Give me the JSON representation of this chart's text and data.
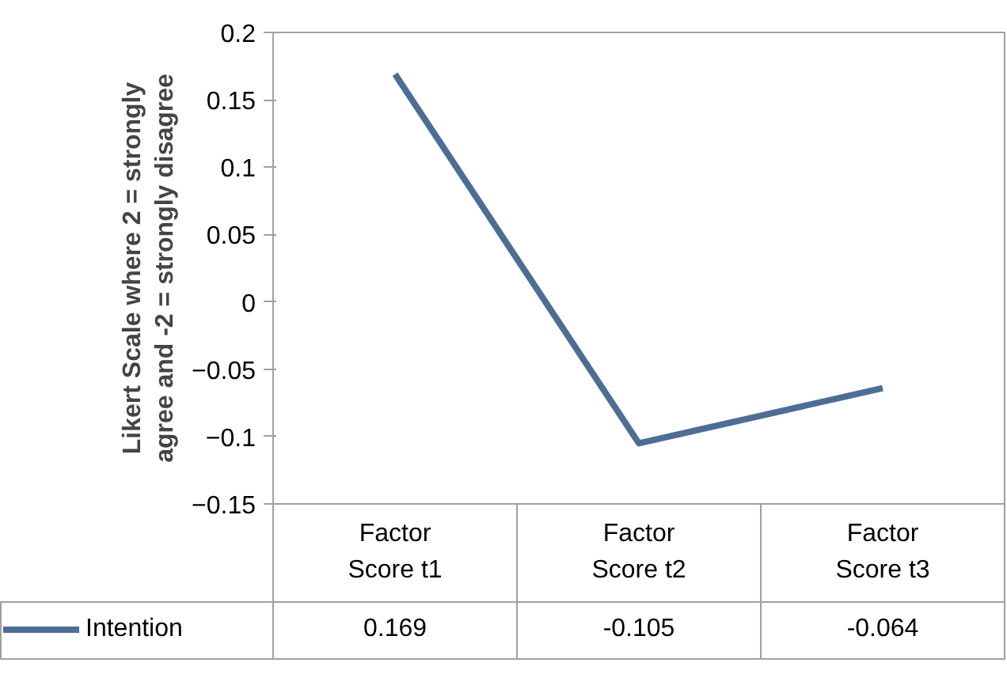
{
  "chart_data": {
    "type": "line",
    "ylabel": "Likert Scale where 2 = strongly agree and -2 = strongly disagree",
    "categories": [
      "Factor Score t1",
      "Factor Score t2",
      "Factor Score t3"
    ],
    "series": [
      {
        "name": "Intention",
        "color": "#4f6d94",
        "values": [
          0.169,
          -0.105,
          -0.064
        ]
      }
    ],
    "ylim": [
      -0.15,
      0.2
    ],
    "yticks": [
      -0.15,
      -0.1,
      -0.05,
      0,
      0.05,
      0.1,
      0.15,
      0.2
    ],
    "grid": false,
    "legend": "bottom left",
    "data_labels": true,
    "marker": "none",
    "line_style": "solid"
  }
}
